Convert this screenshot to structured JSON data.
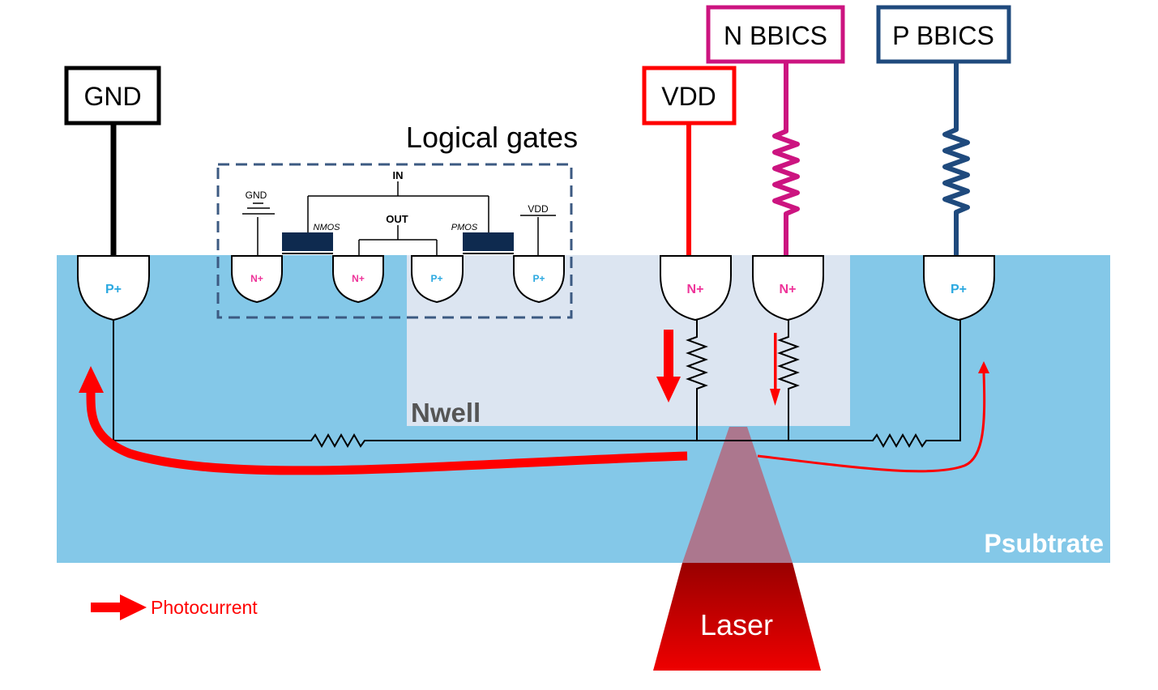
{
  "title": "Logical gates",
  "terminals": {
    "gnd": "GND",
    "vdd": "VDD",
    "n_bbics": "N BBICS",
    "p_bbics": "P BBICS"
  },
  "gate": {
    "in_label": "IN",
    "out_label": "OUT",
    "gnd_label": "GND",
    "vdd_label": "VDD",
    "nmos_label": "NMOS",
    "pmos_label": "PMOS"
  },
  "diffusions": {
    "gnd_tap": "P+",
    "nmos_source": "N+",
    "nmos_drain": "N+",
    "pmos_drain": "P+",
    "pmos_source": "P+",
    "vdd_tap": "N+",
    "n_bbics_tap": "N+",
    "p_bbics_tap": "P+"
  },
  "regions": {
    "nwell": "Nwell",
    "psubstrate": "Psubtrate"
  },
  "laser_label": "Laser",
  "legend": {
    "photocurrent": "Photocurrent"
  },
  "colors": {
    "substrate": "#84c8e8",
    "nwell": "#dce5f1",
    "photocurrent": "#ff0000",
    "n_bbics": "#cc1480",
    "p_bbics": "#1f4a7d",
    "gate_oxide": "#0e2a4f",
    "laser": "#dd0000",
    "n_plus_text": "#ee3399",
    "p_plus_text": "#2aa8e0"
  }
}
